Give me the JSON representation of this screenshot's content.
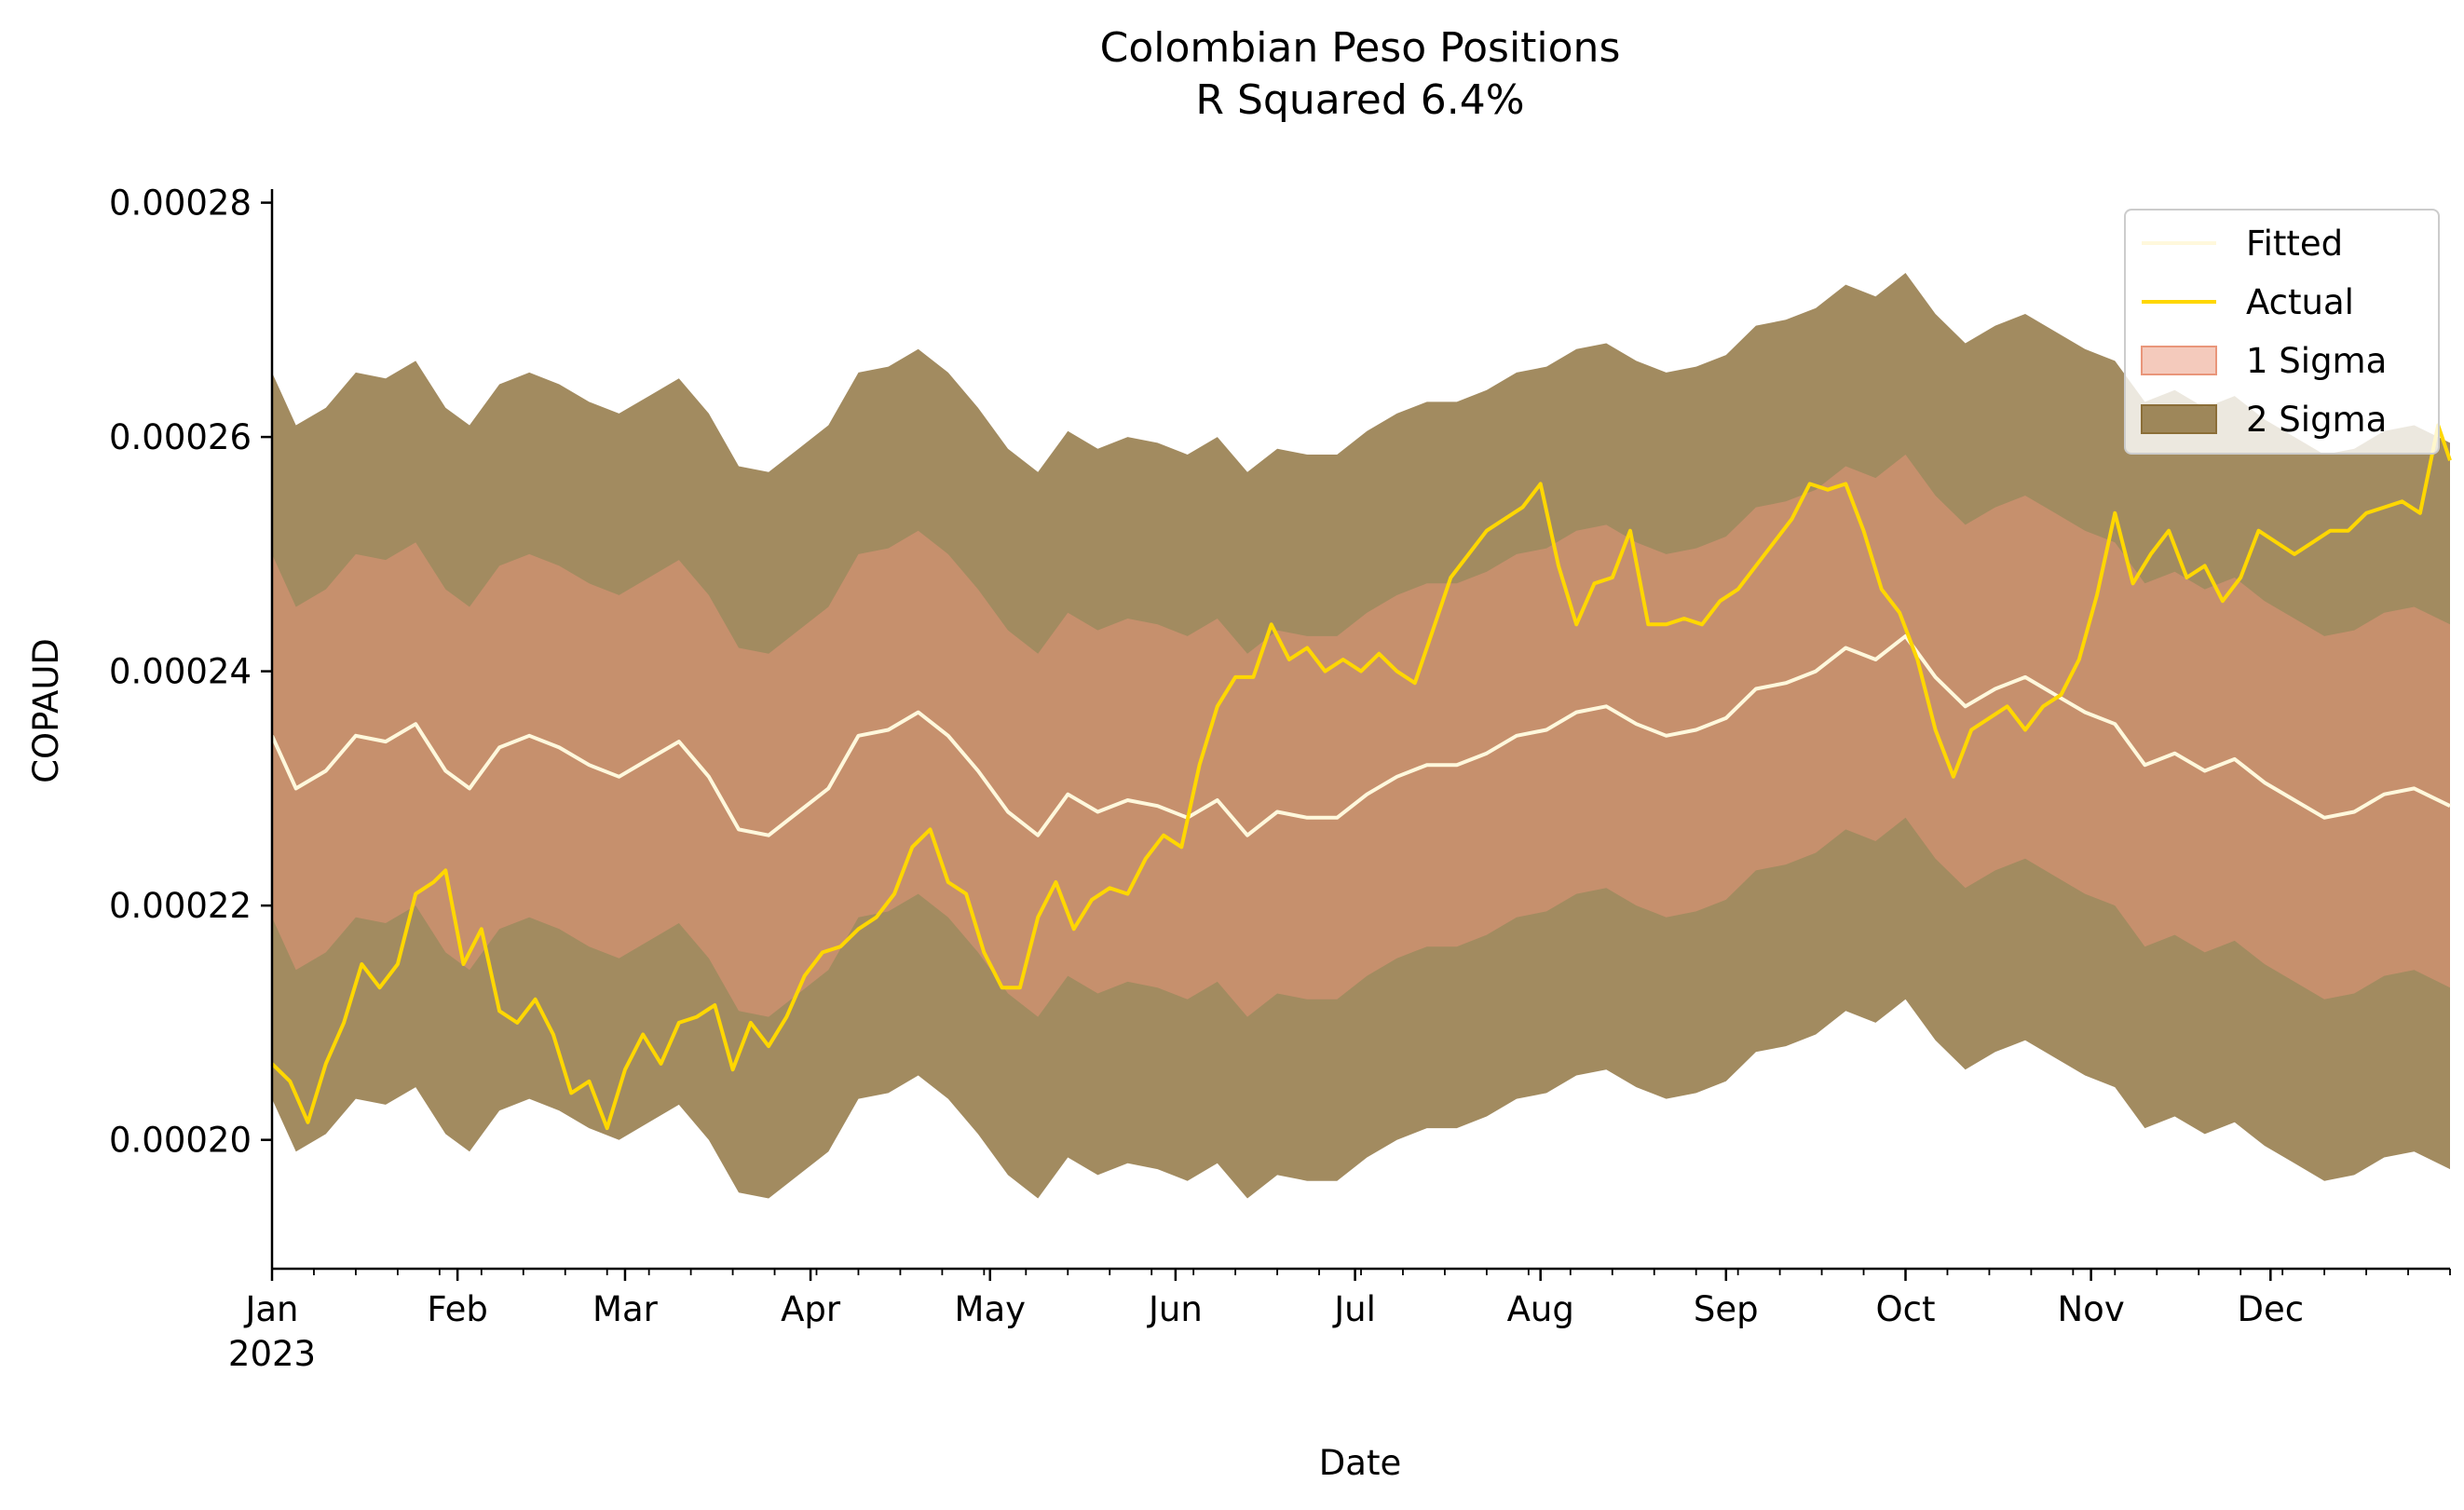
{
  "chart_data": {
    "type": "area",
    "title": "Colombian Peso Positions",
    "subtitle": "R Squared 6.4%",
    "xlabel": "Date",
    "ylabel": "COPAUD",
    "x_range": [
      "2023-01-01",
      "2023-12-31"
    ],
    "ylim": [
      0.000189,
      0.000281
    ],
    "y_ticks": [
      0.0002,
      0.00022,
      0.00024,
      0.00026,
      0.00028
    ],
    "y_tick_labels": [
      "0.00020",
      "0.00022",
      "0.00024",
      "0.00026",
      "0.00028"
    ],
    "x_major_ticks": [
      "2023-01-01",
      "2023-02-01",
      "2023-03-01",
      "2023-04-01",
      "2023-05-01",
      "2023-06-01",
      "2023-07-01",
      "2023-08-01",
      "2023-09-01",
      "2023-10-01",
      "2023-11-01",
      "2023-12-01"
    ],
    "x_tick_labels": [
      "Jan",
      "Feb",
      "Mar",
      "Apr",
      "May",
      "Jun",
      "Jul",
      "Aug",
      "Sep",
      "Oct",
      "Nov",
      "Dec"
    ],
    "x_year_label": "2023",
    "legend_position": "top-right",
    "legend": [
      "Fitted",
      "Actual",
      "1 Sigma",
      "2 Sigma"
    ],
    "sigma": 1.55e-05,
    "series": [
      {
        "name": "Fitted",
        "color": "#FFF8DC",
        "points": [
          [
            "2023-01-01",
            0.0002345
          ],
          [
            "2023-01-05",
            0.00023
          ],
          [
            "2023-01-10",
            0.0002315
          ],
          [
            "2023-01-15",
            0.0002345
          ],
          [
            "2023-01-20",
            0.000234
          ],
          [
            "2023-01-25",
            0.0002355
          ],
          [
            "2023-01-30",
            0.0002315
          ],
          [
            "2023-02-03",
            0.00023
          ],
          [
            "2023-02-08",
            0.0002335
          ],
          [
            "2023-02-13",
            0.0002345
          ],
          [
            "2023-02-18",
            0.0002335
          ],
          [
            "2023-02-23",
            0.000232
          ],
          [
            "2023-02-28",
            0.000231
          ],
          [
            "2023-03-05",
            0.0002325
          ],
          [
            "2023-03-10",
            0.000234
          ],
          [
            "2023-03-15",
            0.000231
          ],
          [
            "2023-03-20",
            0.0002265
          ],
          [
            "2023-03-25",
            0.000226
          ],
          [
            "2023-03-30",
            0.000228
          ],
          [
            "2023-04-04",
            0.00023
          ],
          [
            "2023-04-09",
            0.0002345
          ],
          [
            "2023-04-14",
            0.000235
          ],
          [
            "2023-04-19",
            0.0002365
          ],
          [
            "2023-04-24",
            0.0002345
          ],
          [
            "2023-04-29",
            0.0002315
          ],
          [
            "2023-05-04",
            0.000228
          ],
          [
            "2023-05-09",
            0.000226
          ],
          [
            "2023-05-14",
            0.0002295
          ],
          [
            "2023-05-19",
            0.000228
          ],
          [
            "2023-05-24",
            0.000229
          ],
          [
            "2023-05-29",
            0.0002285
          ],
          [
            "2023-06-03",
            0.0002275
          ],
          [
            "2023-06-08",
            0.000229
          ],
          [
            "2023-06-13",
            0.000226
          ],
          [
            "2023-06-18",
            0.000228
          ],
          [
            "2023-06-23",
            0.0002275
          ],
          [
            "2023-06-28",
            0.0002275
          ],
          [
            "2023-07-03",
            0.0002295
          ],
          [
            "2023-07-08",
            0.000231
          ],
          [
            "2023-07-13",
            0.000232
          ],
          [
            "2023-07-18",
            0.000232
          ],
          [
            "2023-07-23",
            0.000233
          ],
          [
            "2023-07-28",
            0.0002345
          ],
          [
            "2023-08-02",
            0.000235
          ],
          [
            "2023-08-07",
            0.0002365
          ],
          [
            "2023-08-12",
            0.000237
          ],
          [
            "2023-08-17",
            0.0002355
          ],
          [
            "2023-08-22",
            0.0002345
          ],
          [
            "2023-08-27",
            0.000235
          ],
          [
            "2023-09-01",
            0.000236
          ],
          [
            "2023-09-06",
            0.0002385
          ],
          [
            "2023-09-11",
            0.000239
          ],
          [
            "2023-09-16",
            0.00024
          ],
          [
            "2023-09-21",
            0.000242
          ],
          [
            "2023-09-26",
            0.000241
          ],
          [
            "2023-10-01",
            0.000243
          ],
          [
            "2023-10-06",
            0.0002395
          ],
          [
            "2023-10-11",
            0.000237
          ],
          [
            "2023-10-16",
            0.0002385
          ],
          [
            "2023-10-21",
            0.0002395
          ],
          [
            "2023-10-26",
            0.000238
          ],
          [
            "2023-10-31",
            0.0002365
          ],
          [
            "2023-11-05",
            0.0002355
          ],
          [
            "2023-11-10",
            0.000232
          ],
          [
            "2023-11-15",
            0.000233
          ],
          [
            "2023-11-20",
            0.0002315
          ],
          [
            "2023-11-25",
            0.0002325
          ],
          [
            "2023-11-30",
            0.0002305
          ],
          [
            "2023-12-05",
            0.000229
          ],
          [
            "2023-12-10",
            0.0002275
          ],
          [
            "2023-12-15",
            0.000228
          ],
          [
            "2023-12-20",
            0.0002295
          ],
          [
            "2023-12-25",
            0.00023
          ],
          [
            "2023-12-31",
            0.0002285
          ]
        ]
      },
      {
        "name": "Actual",
        "color": "#FFD700",
        "points": [
          [
            "2023-01-01",
            0.0002065
          ],
          [
            "2023-01-04",
            0.000205
          ],
          [
            "2023-01-07",
            0.0002015
          ],
          [
            "2023-01-10",
            0.0002065
          ],
          [
            "2023-01-13",
            0.00021
          ],
          [
            "2023-01-16",
            0.000215
          ],
          [
            "2023-01-19",
            0.000213
          ],
          [
            "2023-01-22",
            0.000215
          ],
          [
            "2023-01-25",
            0.000221
          ],
          [
            "2023-01-28",
            0.000222
          ],
          [
            "2023-01-30",
            0.000223
          ],
          [
            "2023-02-02",
            0.000215
          ],
          [
            "2023-02-05",
            0.000218
          ],
          [
            "2023-02-08",
            0.000211
          ],
          [
            "2023-02-11",
            0.00021
          ],
          [
            "2023-02-14",
            0.000212
          ],
          [
            "2023-02-17",
            0.000209
          ],
          [
            "2023-02-20",
            0.000204
          ],
          [
            "2023-02-23",
            0.000205
          ],
          [
            "2023-02-26",
            0.000201
          ],
          [
            "2023-03-01",
            0.000206
          ],
          [
            "2023-03-04",
            0.000209
          ],
          [
            "2023-03-07",
            0.0002065
          ],
          [
            "2023-03-10",
            0.00021
          ],
          [
            "2023-03-13",
            0.0002105
          ],
          [
            "2023-03-16",
            0.0002115
          ],
          [
            "2023-03-19",
            0.000206
          ],
          [
            "2023-03-22",
            0.00021
          ],
          [
            "2023-03-25",
            0.000208
          ],
          [
            "2023-03-28",
            0.0002105
          ],
          [
            "2023-03-31",
            0.000214
          ],
          [
            "2023-04-03",
            0.000216
          ],
          [
            "2023-04-06",
            0.0002165
          ],
          [
            "2023-04-09",
            0.000218
          ],
          [
            "2023-04-12",
            0.000219
          ],
          [
            "2023-04-15",
            0.000221
          ],
          [
            "2023-04-18",
            0.000225
          ],
          [
            "2023-04-21",
            0.0002265
          ],
          [
            "2023-04-24",
            0.000222
          ],
          [
            "2023-04-27",
            0.000221
          ],
          [
            "2023-04-30",
            0.000216
          ],
          [
            "2023-05-03",
            0.000213
          ],
          [
            "2023-05-06",
            0.000213
          ],
          [
            "2023-05-09",
            0.000219
          ],
          [
            "2023-05-12",
            0.000222
          ],
          [
            "2023-05-15",
            0.000218
          ],
          [
            "2023-05-18",
            0.0002205
          ],
          [
            "2023-05-21",
            0.0002215
          ],
          [
            "2023-05-24",
            0.000221
          ],
          [
            "2023-05-27",
            0.000224
          ],
          [
            "2023-05-30",
            0.000226
          ],
          [
            "2023-06-02",
            0.000225
          ],
          [
            "2023-06-05",
            0.000232
          ],
          [
            "2023-06-08",
            0.000237
          ],
          [
            "2023-06-11",
            0.0002395
          ],
          [
            "2023-06-14",
            0.0002395
          ],
          [
            "2023-06-17",
            0.000244
          ],
          [
            "2023-06-20",
            0.000241
          ],
          [
            "2023-06-23",
            0.000242
          ],
          [
            "2023-06-26",
            0.00024
          ],
          [
            "2023-06-29",
            0.000241
          ],
          [
            "2023-07-02",
            0.00024
          ],
          [
            "2023-07-05",
            0.0002415
          ],
          [
            "2023-07-08",
            0.00024
          ],
          [
            "2023-07-11",
            0.000239
          ],
          [
            "2023-07-14",
            0.0002435
          ],
          [
            "2023-07-17",
            0.000248
          ],
          [
            "2023-07-20",
            0.00025
          ],
          [
            "2023-07-23",
            0.000252
          ],
          [
            "2023-07-26",
            0.000253
          ],
          [
            "2023-07-29",
            0.000254
          ],
          [
            "2023-08-01",
            0.000256
          ],
          [
            "2023-08-04",
            0.000249
          ],
          [
            "2023-08-07",
            0.000244
          ],
          [
            "2023-08-10",
            0.0002475
          ],
          [
            "2023-08-13",
            0.000248
          ],
          [
            "2023-08-16",
            0.000252
          ],
          [
            "2023-08-19",
            0.000244
          ],
          [
            "2023-08-22",
            0.000244
          ],
          [
            "2023-08-25",
            0.0002445
          ],
          [
            "2023-08-28",
            0.000244
          ],
          [
            "2023-08-31",
            0.000246
          ],
          [
            "2023-09-03",
            0.000247
          ],
          [
            "2023-09-06",
            0.000249
          ],
          [
            "2023-09-09",
            0.000251
          ],
          [
            "2023-09-12",
            0.000253
          ],
          [
            "2023-09-15",
            0.000256
          ],
          [
            "2023-09-18",
            0.0002555
          ],
          [
            "2023-09-21",
            0.000256
          ],
          [
            "2023-09-24",
            0.000252
          ],
          [
            "2023-09-27",
            0.000247
          ],
          [
            "2023-09-30",
            0.000245
          ],
          [
            "2023-10-03",
            0.000241
          ],
          [
            "2023-10-06",
            0.000235
          ],
          [
            "2023-10-09",
            0.000231
          ],
          [
            "2023-10-12",
            0.000235
          ],
          [
            "2023-10-15",
            0.000236
          ],
          [
            "2023-10-18",
            0.000237
          ],
          [
            "2023-10-21",
            0.000235
          ],
          [
            "2023-10-24",
            0.000237
          ],
          [
            "2023-10-27",
            0.000238
          ],
          [
            "2023-10-30",
            0.000241
          ],
          [
            "2023-11-02",
            0.0002465
          ],
          [
            "2023-11-05",
            0.0002535
          ],
          [
            "2023-11-08",
            0.0002475
          ],
          [
            "2023-11-11",
            0.00025
          ],
          [
            "2023-11-14",
            0.000252
          ],
          [
            "2023-11-17",
            0.000248
          ],
          [
            "2023-11-20",
            0.000249
          ],
          [
            "2023-11-23",
            0.000246
          ],
          [
            "2023-11-26",
            0.000248
          ],
          [
            "2023-11-29",
            0.000252
          ],
          [
            "2023-12-02",
            0.000251
          ],
          [
            "2023-12-05",
            0.00025
          ],
          [
            "2023-12-08",
            0.000251
          ],
          [
            "2023-12-11",
            0.000252
          ],
          [
            "2023-12-14",
            0.000252
          ],
          [
            "2023-12-17",
            0.0002535
          ],
          [
            "2023-12-20",
            0.000254
          ],
          [
            "2023-12-23",
            0.0002545
          ],
          [
            "2023-12-26",
            0.0002535
          ],
          [
            "2023-12-29",
            0.000261
          ],
          [
            "2023-12-31",
            0.000258
          ]
        ]
      }
    ],
    "bands": [
      {
        "name": "2 Sigma",
        "color": "#8B6E38",
        "opacity": 0.8,
        "multiplier": 2
      },
      {
        "name": "1 Sigma",
        "color": "#E9967A",
        "opacity": 0.5,
        "multiplier": 1
      }
    ]
  }
}
